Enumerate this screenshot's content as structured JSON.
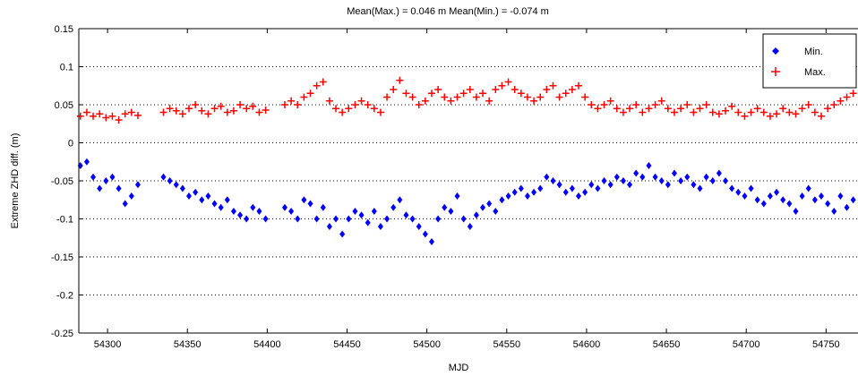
{
  "chart_data": {
    "type": "scatter",
    "title": "Mean(Max.) = 0.046 m   Mean(Min.) = -0.074 m",
    "xlabel": "MJD",
    "ylabel": "Extreme ZHD diff. (m)",
    "xlim": [
      54282,
      54770
    ],
    "ylim": [
      -0.25,
      0.15
    ],
    "xticks": [
      54300,
      54350,
      54400,
      54450,
      54500,
      54550,
      54600,
      54650,
      54700,
      54750
    ],
    "yticks": [
      -0.25,
      -0.2,
      -0.15,
      -0.1,
      -0.05,
      0,
      0.05,
      0.1,
      0.15
    ],
    "grid": "dotted-horizontal",
    "legend_position": "top-right",
    "series": [
      {
        "name": "Min.",
        "marker": "diamond",
        "color": "#0000ff",
        "x": [
          54283,
          54287,
          54291,
          54295,
          54299,
          54303,
          54307,
          54311,
          54315,
          54319,
          54335,
          54339,
          54343,
          54347,
          54351,
          54355,
          54359,
          54363,
          54367,
          54371,
          54375,
          54379,
          54383,
          54387,
          54391,
          54395,
          54399,
          54411,
          54415,
          54419,
          54423,
          54427,
          54431,
          54435,
          54439,
          54443,
          54447,
          54451,
          54455,
          54459,
          54463,
          54467,
          54471,
          54475,
          54479,
          54483,
          54487,
          54491,
          54495,
          54499,
          54503,
          54507,
          54511,
          54515,
          54519,
          54523,
          54527,
          54531,
          54535,
          54539,
          54543,
          54547,
          54551,
          54555,
          54559,
          54563,
          54567,
          54571,
          54575,
          54579,
          54583,
          54587,
          54591,
          54595,
          54599,
          54603,
          54607,
          54611,
          54615,
          54619,
          54623,
          54627,
          54631,
          54635,
          54639,
          54643,
          54647,
          54651,
          54655,
          54659,
          54663,
          54667,
          54671,
          54675,
          54679,
          54683,
          54687,
          54691,
          54695,
          54699,
          54703,
          54707,
          54711,
          54715,
          54719,
          54723,
          54727,
          54731,
          54735,
          54739,
          54743,
          54747,
          54751,
          54755,
          54759,
          54763,
          54767
        ],
        "y": [
          -0.03,
          -0.025,
          -0.045,
          -0.06,
          -0.05,
          -0.045,
          -0.06,
          -0.08,
          -0.07,
          -0.055,
          -0.045,
          -0.05,
          -0.055,
          -0.06,
          -0.07,
          -0.065,
          -0.075,
          -0.07,
          -0.08,
          -0.085,
          -0.075,
          -0.09,
          -0.095,
          -0.1,
          -0.085,
          -0.09,
          -0.1,
          -0.085,
          -0.09,
          -0.1,
          -0.075,
          -0.08,
          -0.1,
          -0.085,
          -0.11,
          -0.1,
          -0.12,
          -0.1,
          -0.09,
          -0.095,
          -0.105,
          -0.09,
          -0.11,
          -0.1,
          -0.085,
          -0.075,
          -0.095,
          -0.1,
          -0.11,
          -0.12,
          -0.13,
          -0.1,
          -0.085,
          -0.09,
          -0.07,
          -0.1,
          -0.11,
          -0.095,
          -0.085,
          -0.08,
          -0.09,
          -0.075,
          -0.07,
          -0.065,
          -0.06,
          -0.07,
          -0.065,
          -0.06,
          -0.045,
          -0.05,
          -0.055,
          -0.065,
          -0.06,
          -0.07,
          -0.065,
          -0.055,
          -0.06,
          -0.05,
          -0.055,
          -0.045,
          -0.05,
          -0.055,
          -0.04,
          -0.045,
          -0.03,
          -0.045,
          -0.05,
          -0.055,
          -0.04,
          -0.05,
          -0.045,
          -0.055,
          -0.06,
          -0.045,
          -0.05,
          -0.04,
          -0.05,
          -0.06,
          -0.065,
          -0.07,
          -0.06,
          -0.075,
          -0.08,
          -0.07,
          -0.065,
          -0.075,
          -0.08,
          -0.09,
          -0.07,
          -0.06,
          -0.075,
          -0.07,
          -0.08,
          -0.09,
          -0.07,
          -0.085,
          -0.075
        ]
      },
      {
        "name": "Max.",
        "marker": "plus",
        "color": "#ff0000",
        "x": [
          54283,
          54287,
          54291,
          54295,
          54299,
          54303,
          54307,
          54311,
          54315,
          54319,
          54335,
          54339,
          54343,
          54347,
          54351,
          54355,
          54359,
          54363,
          54367,
          54371,
          54375,
          54379,
          54383,
          54387,
          54391,
          54395,
          54399,
          54411,
          54415,
          54419,
          54423,
          54427,
          54431,
          54435,
          54439,
          54443,
          54447,
          54451,
          54455,
          54459,
          54463,
          54467,
          54471,
          54475,
          54479,
          54483,
          54487,
          54491,
          54495,
          54499,
          54503,
          54507,
          54511,
          54515,
          54519,
          54523,
          54527,
          54531,
          54535,
          54539,
          54543,
          54547,
          54551,
          54555,
          54559,
          54563,
          54567,
          54571,
          54575,
          54579,
          54583,
          54587,
          54591,
          54595,
          54599,
          54603,
          54607,
          54611,
          54615,
          54619,
          54623,
          54627,
          54631,
          54635,
          54639,
          54643,
          54647,
          54651,
          54655,
          54659,
          54663,
          54667,
          54671,
          54675,
          54679,
          54683,
          54687,
          54691,
          54695,
          54699,
          54703,
          54707,
          54711,
          54715,
          54719,
          54723,
          54727,
          54731,
          54735,
          54739,
          54743,
          54747,
          54751,
          54755,
          54759,
          54763,
          54767
        ],
        "y": [
          0.035,
          0.04,
          0.035,
          0.038,
          0.033,
          0.035,
          0.03,
          0.038,
          0.04,
          0.036,
          0.04,
          0.045,
          0.042,
          0.038,
          0.045,
          0.05,
          0.042,
          0.038,
          0.045,
          0.048,
          0.04,
          0.042,
          0.05,
          0.045,
          0.048,
          0.04,
          0.043,
          0.05,
          0.055,
          0.05,
          0.06,
          0.065,
          0.075,
          0.08,
          0.055,
          0.045,
          0.04,
          0.045,
          0.05,
          0.055,
          0.05,
          0.045,
          0.04,
          0.06,
          0.07,
          0.082,
          0.065,
          0.06,
          0.05,
          0.055,
          0.065,
          0.07,
          0.06,
          0.055,
          0.06,
          0.065,
          0.07,
          0.06,
          0.065,
          0.055,
          0.07,
          0.075,
          0.08,
          0.07,
          0.065,
          0.06,
          0.055,
          0.06,
          0.07,
          0.075,
          0.06,
          0.065,
          0.07,
          0.075,
          0.06,
          0.05,
          0.045,
          0.05,
          0.055,
          0.045,
          0.04,
          0.045,
          0.05,
          0.04,
          0.045,
          0.05,
          0.055,
          0.045,
          0.04,
          0.045,
          0.05,
          0.04,
          0.045,
          0.05,
          0.04,
          0.038,
          0.042,
          0.048,
          0.04,
          0.035,
          0.04,
          0.045,
          0.04,
          0.035,
          0.038,
          0.045,
          0.04,
          0.038,
          0.045,
          0.05,
          0.04,
          0.035,
          0.045,
          0.05,
          0.055,
          0.06,
          0.065
        ]
      }
    ]
  }
}
